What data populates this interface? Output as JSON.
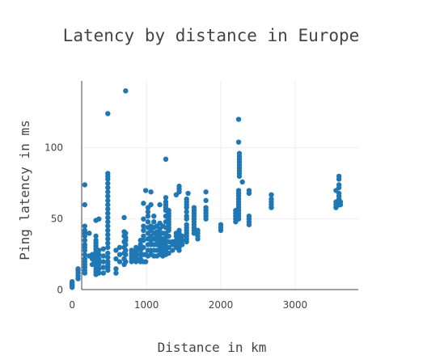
{
  "chart_data": {
    "type": "scatter",
    "title": "Latency by distance in Europe",
    "xlabel": "Distance in km",
    "ylabel": "Ping latency in ms",
    "xlim": [
      -100,
      3850
    ],
    "ylim": [
      -3,
      147
    ],
    "x_ticks": [
      0,
      1000,
      2000,
      3000
    ],
    "x_tick_labels": [
      "0",
      "1000",
      "2000",
      "3000"
    ],
    "y_ticks": [
      0,
      50,
      100
    ],
    "y_tick_labels": [
      "0",
      "50",
      "100"
    ],
    "grid": true,
    "legend": "none",
    "marker_color": "#1f77b4",
    "series": [
      {
        "points": [
          [
            0,
            2
          ],
          [
            0,
            3
          ],
          [
            0,
            4
          ],
          [
            0,
            5
          ],
          [
            0,
            6
          ],
          [
            80,
            8
          ],
          [
            80,
            10
          ],
          [
            80,
            12
          ],
          [
            80,
            14
          ],
          [
            80,
            15
          ],
          [
            170,
            12
          ],
          [
            170,
            14
          ],
          [
            170,
            16
          ],
          [
            170,
            18
          ],
          [
            170,
            20
          ],
          [
            170,
            22
          ],
          [
            170,
            25
          ],
          [
            170,
            28
          ],
          [
            170,
            30
          ],
          [
            170,
            32
          ],
          [
            170,
            35
          ],
          [
            170,
            38
          ],
          [
            170,
            40
          ],
          [
            170,
            42
          ],
          [
            170,
            45
          ],
          [
            170,
            60
          ],
          [
            170,
            74
          ],
          [
            230,
            24
          ],
          [
            230,
            40
          ],
          [
            270,
            18
          ],
          [
            270,
            22
          ],
          [
            270,
            25
          ],
          [
            300,
            20
          ],
          [
            300,
            24
          ],
          [
            320,
            11
          ],
          [
            320,
            13
          ],
          [
            320,
            15
          ],
          [
            320,
            17
          ],
          [
            320,
            19
          ],
          [
            320,
            21
          ],
          [
            320,
            23
          ],
          [
            320,
            25
          ],
          [
            320,
            27
          ],
          [
            320,
            29
          ],
          [
            320,
            31
          ],
          [
            320,
            33
          ],
          [
            320,
            35
          ],
          [
            320,
            38
          ],
          [
            320,
            49
          ],
          [
            360,
            12
          ],
          [
            360,
            15
          ],
          [
            360,
            18
          ],
          [
            360,
            20
          ],
          [
            360,
            22
          ],
          [
            360,
            25
          ],
          [
            360,
            28
          ],
          [
            360,
            50
          ],
          [
            420,
            12
          ],
          [
            420,
            16
          ],
          [
            420,
            20
          ],
          [
            420,
            24
          ],
          [
            420,
            29
          ],
          [
            480,
            14
          ],
          [
            480,
            16
          ],
          [
            480,
            18
          ],
          [
            480,
            20
          ],
          [
            480,
            23
          ],
          [
            480,
            26
          ],
          [
            480,
            30
          ],
          [
            480,
            33
          ],
          [
            480,
            36
          ],
          [
            480,
            39
          ],
          [
            480,
            42
          ],
          [
            480,
            45
          ],
          [
            480,
            48
          ],
          [
            480,
            51
          ],
          [
            480,
            54
          ],
          [
            480,
            57
          ],
          [
            480,
            60
          ],
          [
            480,
            63
          ],
          [
            480,
            66
          ],
          [
            480,
            69
          ],
          [
            480,
            72
          ],
          [
            480,
            75
          ],
          [
            480,
            78
          ],
          [
            480,
            80
          ],
          [
            480,
            82
          ],
          [
            480,
            124
          ],
          [
            590,
            12
          ],
          [
            590,
            15
          ],
          [
            590,
            22
          ],
          [
            590,
            28
          ],
          [
            640,
            20
          ],
          [
            640,
            25
          ],
          [
            640,
            30
          ],
          [
            700,
            18
          ],
          [
            700,
            22
          ],
          [
            700,
            26
          ],
          [
            700,
            30
          ],
          [
            700,
            34
          ],
          [
            700,
            38
          ],
          [
            700,
            41
          ],
          [
            700,
            51
          ],
          [
            720,
            20
          ],
          [
            720,
            25
          ],
          [
            720,
            28
          ],
          [
            720,
            32
          ],
          [
            720,
            35
          ],
          [
            720,
            37
          ],
          [
            720,
            40
          ],
          [
            720,
            140
          ],
          [
            800,
            20
          ],
          [
            800,
            22
          ],
          [
            800,
            24
          ],
          [
            800,
            26
          ],
          [
            800,
            28
          ],
          [
            860,
            20
          ],
          [
            860,
            22
          ],
          [
            860,
            24
          ],
          [
            860,
            26
          ],
          [
            860,
            28
          ],
          [
            860,
            30
          ],
          [
            920,
            20
          ],
          [
            920,
            22
          ],
          [
            920,
            25
          ],
          [
            920,
            28
          ],
          [
            920,
            30
          ],
          [
            920,
            32
          ],
          [
            920,
            35
          ],
          [
            960,
            20
          ],
          [
            960,
            25
          ],
          [
            960,
            30
          ],
          [
            960,
            35
          ],
          [
            960,
            38
          ],
          [
            960,
            42
          ],
          [
            960,
            45
          ],
          [
            960,
            50
          ],
          [
            960,
            61
          ],
          [
            990,
            20
          ],
          [
            990,
            25
          ],
          [
            990,
            70
          ],
          [
            1020,
            24
          ],
          [
            1020,
            28
          ],
          [
            1020,
            32
          ],
          [
            1020,
            36
          ],
          [
            1020,
            40
          ],
          [
            1020,
            44
          ],
          [
            1020,
            48
          ],
          [
            1020,
            52
          ],
          [
            1020,
            55
          ],
          [
            1020,
            58
          ],
          [
            1060,
            25
          ],
          [
            1060,
            28
          ],
          [
            1060,
            32
          ],
          [
            1060,
            35
          ],
          [
            1060,
            38
          ],
          [
            1060,
            42
          ],
          [
            1060,
            45
          ],
          [
            1060,
            60
          ],
          [
            1060,
            69
          ],
          [
            1100,
            24
          ],
          [
            1100,
            28
          ],
          [
            1100,
            32
          ],
          [
            1100,
            36
          ],
          [
            1100,
            40
          ],
          [
            1100,
            44
          ],
          [
            1100,
            48
          ],
          [
            1100,
            52
          ],
          [
            1140,
            24
          ],
          [
            1140,
            28
          ],
          [
            1140,
            32
          ],
          [
            1140,
            35
          ],
          [
            1140,
            38
          ],
          [
            1140,
            41
          ],
          [
            1140,
            45
          ],
          [
            1180,
            25
          ],
          [
            1180,
            28
          ],
          [
            1180,
            31
          ],
          [
            1180,
            34
          ],
          [
            1180,
            37
          ],
          [
            1180,
            40
          ],
          [
            1180,
            43
          ],
          [
            1180,
            47
          ],
          [
            1180,
            60
          ],
          [
            1220,
            24
          ],
          [
            1220,
            27
          ],
          [
            1220,
            30
          ],
          [
            1220,
            33
          ],
          [
            1220,
            36
          ],
          [
            1220,
            40
          ],
          [
            1220,
            45
          ],
          [
            1260,
            25
          ],
          [
            1260,
            28
          ],
          [
            1260,
            31
          ],
          [
            1260,
            34
          ],
          [
            1260,
            37
          ],
          [
            1260,
            40
          ],
          [
            1260,
            44
          ],
          [
            1260,
            48
          ],
          [
            1260,
            52
          ],
          [
            1260,
            56
          ],
          [
            1260,
            58
          ],
          [
            1260,
            60
          ],
          [
            1260,
            62
          ],
          [
            1260,
            65
          ],
          [
            1260,
            92
          ],
          [
            1300,
            26
          ],
          [
            1300,
            30
          ],
          [
            1300,
            34
          ],
          [
            1300,
            38
          ],
          [
            1300,
            42
          ],
          [
            1300,
            44
          ],
          [
            1300,
            46
          ],
          [
            1300,
            48
          ],
          [
            1300,
            50
          ],
          [
            1300,
            52
          ],
          [
            1300,
            54
          ],
          [
            1300,
            56
          ],
          [
            1350,
            28
          ],
          [
            1350,
            32
          ],
          [
            1350,
            34
          ],
          [
            1400,
            30
          ],
          [
            1400,
            32
          ],
          [
            1400,
            35
          ],
          [
            1400,
            38
          ],
          [
            1400,
            40
          ],
          [
            1400,
            67
          ],
          [
            1440,
            28
          ],
          [
            1440,
            30
          ],
          [
            1440,
            32
          ],
          [
            1440,
            34
          ],
          [
            1440,
            36
          ],
          [
            1440,
            38
          ],
          [
            1440,
            40
          ],
          [
            1440,
            42
          ],
          [
            1440,
            69
          ],
          [
            1440,
            71
          ],
          [
            1440,
            73
          ],
          [
            1480,
            32
          ],
          [
            1480,
            35
          ],
          [
            1480,
            38
          ],
          [
            1540,
            34
          ],
          [
            1540,
            36
          ],
          [
            1540,
            38
          ],
          [
            1540,
            40
          ],
          [
            1540,
            42
          ],
          [
            1540,
            44
          ],
          [
            1540,
            46
          ],
          [
            1540,
            50
          ],
          [
            1540,
            52
          ],
          [
            1540,
            55
          ],
          [
            1540,
            58
          ],
          [
            1540,
            60
          ],
          [
            1540,
            62
          ],
          [
            1540,
            64
          ],
          [
            1560,
            68
          ],
          [
            1640,
            40
          ],
          [
            1640,
            42
          ],
          [
            1640,
            44
          ],
          [
            1640,
            46
          ],
          [
            1640,
            48
          ],
          [
            1640,
            50
          ],
          [
            1640,
            52
          ],
          [
            1640,
            54
          ],
          [
            1640,
            56
          ],
          [
            1640,
            58
          ],
          [
            1690,
            36
          ],
          [
            1690,
            38
          ],
          [
            1690,
            40
          ],
          [
            1690,
            42
          ],
          [
            1800,
            50
          ],
          [
            1800,
            52
          ],
          [
            1800,
            54
          ],
          [
            1800,
            56
          ],
          [
            1800,
            58
          ],
          [
            1800,
            63
          ],
          [
            1800,
            69
          ],
          [
            2000,
            42
          ],
          [
            2000,
            44
          ],
          [
            2000,
            46
          ],
          [
            2200,
            48
          ],
          [
            2200,
            50
          ],
          [
            2200,
            52
          ],
          [
            2200,
            54
          ],
          [
            2200,
            56
          ],
          [
            2240,
            50
          ],
          [
            2240,
            52
          ],
          [
            2240,
            54
          ],
          [
            2240,
            56
          ],
          [
            2240,
            58
          ],
          [
            2240,
            60
          ],
          [
            2240,
            62
          ],
          [
            2240,
            64
          ],
          [
            2240,
            66
          ],
          [
            2240,
            68
          ],
          [
            2240,
            70
          ],
          [
            2240,
            104
          ],
          [
            2240,
            120
          ],
          [
            2250,
            80
          ],
          [
            2250,
            82
          ],
          [
            2250,
            84
          ],
          [
            2250,
            86
          ],
          [
            2250,
            88
          ],
          [
            2250,
            90
          ],
          [
            2250,
            92
          ],
          [
            2250,
            94
          ],
          [
            2250,
            96
          ],
          [
            2290,
            76
          ],
          [
            2380,
            46
          ],
          [
            2380,
            48
          ],
          [
            2380,
            50
          ],
          [
            2380,
            52
          ],
          [
            2380,
            68
          ],
          [
            2380,
            70
          ],
          [
            2680,
            58
          ],
          [
            2680,
            60
          ],
          [
            2680,
            62
          ],
          [
            2680,
            64
          ],
          [
            2680,
            67
          ],
          [
            3550,
            58
          ],
          [
            3550,
            60
          ],
          [
            3550,
            62
          ],
          [
            3550,
            70
          ],
          [
            3590,
            60
          ],
          [
            3590,
            62
          ],
          [
            3590,
            64
          ],
          [
            3590,
            66
          ],
          [
            3590,
            68
          ],
          [
            3590,
            72
          ],
          [
            3590,
            74
          ],
          [
            3590,
            78
          ],
          [
            3590,
            80
          ],
          [
            3610,
            60
          ],
          [
            3610,
            62
          ]
        ]
      }
    ]
  }
}
